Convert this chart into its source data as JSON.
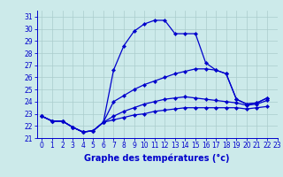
{
  "title": "Graphe des températures (°c)",
  "bg_color": "#cceaea",
  "line_color": "#0000cc",
  "grid_color": "#aacccc",
  "xlim": [
    -0.5,
    23
  ],
  "ylim": [
    21,
    31.5
  ],
  "yticks": [
    21,
    22,
    23,
    24,
    25,
    26,
    27,
    28,
    29,
    30,
    31
  ],
  "xticks": [
    0,
    1,
    2,
    3,
    4,
    5,
    6,
    7,
    8,
    9,
    10,
    11,
    12,
    13,
    14,
    15,
    16,
    17,
    18,
    19,
    20,
    21,
    22,
    23
  ],
  "series": [
    {
      "x": [
        0,
        1,
        2,
        3,
        4,
        5,
        6,
        7,
        8,
        9,
        10,
        11,
        12,
        13,
        14,
        15,
        16,
        17,
        18,
        19,
        20,
        21,
        22
      ],
      "y": [
        22.8,
        22.4,
        22.4,
        21.9,
        21.5,
        21.6,
        22.3,
        26.6,
        28.6,
        29.8,
        30.4,
        30.7,
        30.7,
        29.6,
        29.6,
        29.6,
        27.2,
        26.6,
        26.3,
        24.2,
        23.8,
        23.9,
        24.3
      ]
    },
    {
      "x": [
        0,
        1,
        2,
        3,
        4,
        5,
        6,
        7,
        8,
        9,
        10,
        11,
        12,
        13,
        14,
        15,
        16,
        17,
        18,
        19,
        20,
        21,
        22
      ],
      "y": [
        22.8,
        22.4,
        22.4,
        21.9,
        21.5,
        21.6,
        22.3,
        24.0,
        24.5,
        25.0,
        25.4,
        25.7,
        26.0,
        26.3,
        26.5,
        26.7,
        26.7,
        26.6,
        26.3,
        24.2,
        23.8,
        23.9,
        24.3
      ]
    },
    {
      "x": [
        0,
        1,
        2,
        3,
        4,
        5,
        6,
        7,
        8,
        9,
        10,
        11,
        12,
        13,
        14,
        15,
        16,
        17,
        18,
        19,
        20,
        21,
        22
      ],
      "y": [
        22.8,
        22.4,
        22.4,
        21.9,
        21.5,
        21.6,
        22.3,
        22.8,
        23.2,
        23.5,
        23.8,
        24.0,
        24.2,
        24.3,
        24.4,
        24.3,
        24.2,
        24.1,
        24.0,
        23.9,
        23.7,
        23.8,
        24.1
      ]
    },
    {
      "x": [
        0,
        1,
        2,
        3,
        4,
        5,
        6,
        7,
        8,
        9,
        10,
        11,
        12,
        13,
        14,
        15,
        16,
        17,
        18,
        19,
        20,
        21,
        22
      ],
      "y": [
        22.8,
        22.4,
        22.4,
        21.9,
        21.5,
        21.6,
        22.3,
        22.5,
        22.7,
        22.9,
        23.0,
        23.2,
        23.3,
        23.4,
        23.5,
        23.5,
        23.5,
        23.5,
        23.5,
        23.5,
        23.4,
        23.5,
        23.6
      ]
    }
  ]
}
